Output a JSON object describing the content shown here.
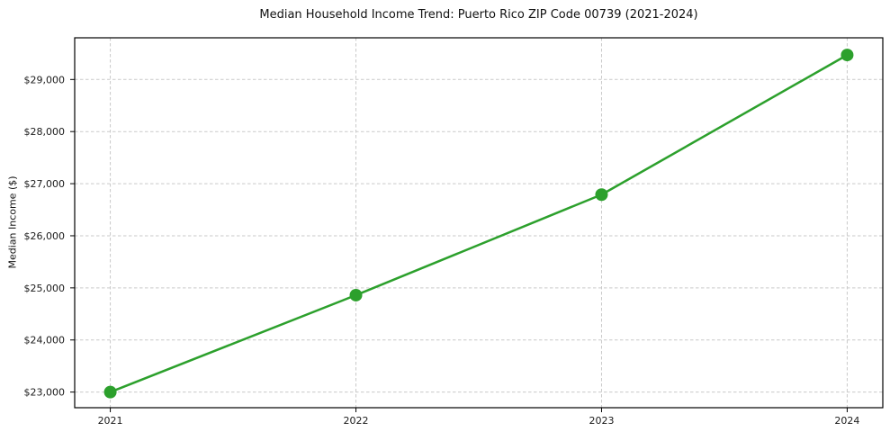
{
  "figure": {
    "title": "Median Household Income Trend: Puerto Rico ZIP Code 00739 (2021-2024)",
    "ylabel": "Median Income ($)"
  },
  "chart_data": {
    "type": "line",
    "title": "Median Household Income Trend: Puerto Rico ZIP Code 00739 (2021-2024)",
    "xlabel": "",
    "ylabel": "Median Income ($)",
    "x": [
      2021,
      2022,
      2023,
      2024
    ],
    "x_tick_labels": [
      "2021",
      "2022",
      "2023",
      "2024"
    ],
    "series": [
      {
        "name": "Median Household Income",
        "values": [
          23000,
          24860,
          26790,
          29470
        ],
        "color": "#2ca02c",
        "marker": "circle",
        "marker_radius": 7,
        "line_width": 2.5
      }
    ],
    "yticks": {
      "values": [
        23000,
        24000,
        25000,
        26000,
        27000,
        28000,
        29000
      ],
      "labels": [
        "$23,000",
        "$24,000",
        "$25,000",
        "$26,000",
        "$27,000",
        "$28,000",
        "$29,000"
      ]
    },
    "xlim": [
      2020.855,
      2024.145
    ],
    "ylim": [
      22700,
      29800
    ],
    "grid": true,
    "grid_style": "dashed",
    "grid_color": "#c9c9c9",
    "background": "#ffffff",
    "legend": "none"
  }
}
